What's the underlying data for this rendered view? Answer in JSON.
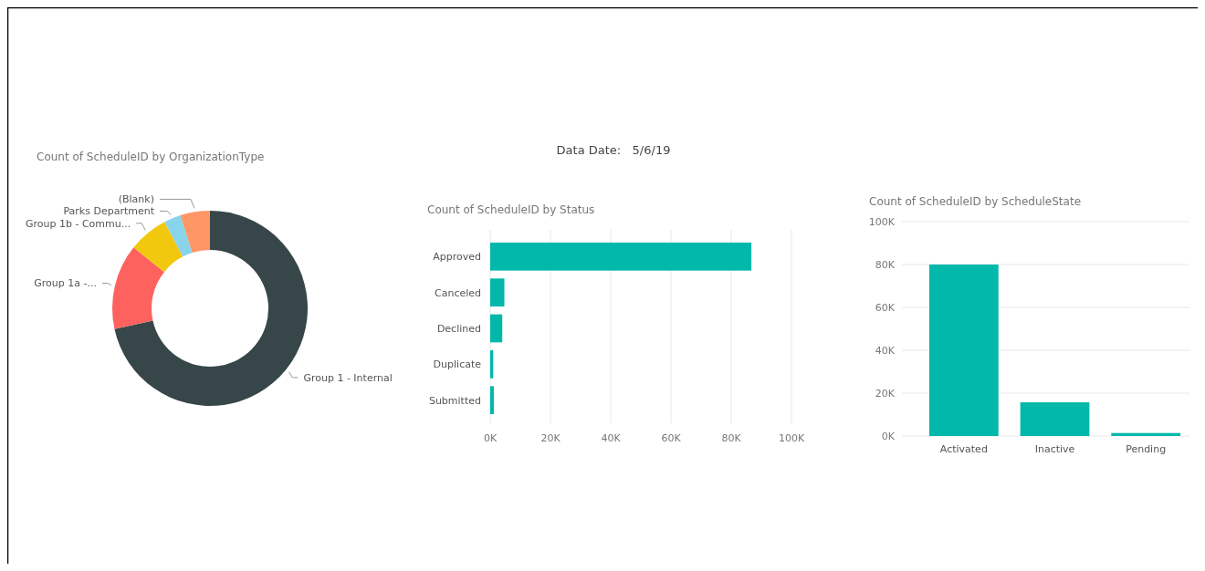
{
  "chart_data": [
    {
      "type": "donut",
      "title": "Count of ScheduleID by OrganizationType",
      "categories": [
        "Group 1 - Internal",
        "Group 1a -...",
        "Group 1b - Commu...",
        "Parks Department",
        "(Blank)"
      ],
      "values": [
        71.6,
        14.1,
        6.6,
        2.8,
        4.9
      ],
      "colors": [
        "#374649",
        "#fd625e",
        "#f2c80f",
        "#8ad4eb",
        "#fe9666"
      ]
    },
    {
      "type": "other",
      "annotations": [
        "Data Date:   5/6/19"
      ]
    },
    {
      "type": "bar",
      "orientation": "horizontal",
      "title": "Count of ScheduleID by Status",
      "categories": [
        "Approved",
        "Canceled",
        "Declined",
        "Duplicate",
        "Submitted"
      ],
      "values": [
        86700,
        4700,
        4000,
        1000,
        1200
      ],
      "color": "#01b8aa",
      "xlim": [
        0,
        100000
      ],
      "xticks": [
        {
          "value": 0,
          "label": "0K"
        },
        {
          "value": 20000,
          "label": "20K"
        },
        {
          "value": 40000,
          "label": "40K"
        },
        {
          "value": 60000,
          "label": "60K"
        },
        {
          "value": 80000,
          "label": "80K"
        },
        {
          "value": 100000,
          "label": "100K"
        }
      ],
      "grid": "x"
    },
    {
      "type": "bar",
      "title": "Count of ScheduleID by ScheduleState",
      "categories": [
        "Activated",
        "Inactive",
        "Pending"
      ],
      "values": [
        80000,
        15700,
        1400
      ],
      "color": "#01b8aa",
      "ylim": [
        0,
        100000
      ],
      "yticks": [
        {
          "value": 0,
          "label": "0K"
        },
        {
          "value": 20000,
          "label": "20K"
        },
        {
          "value": 40000,
          "label": "40K"
        },
        {
          "value": 60000,
          "label": "60K"
        },
        {
          "value": 80000,
          "label": "80K"
        },
        {
          "value": 100000,
          "label": "100K"
        }
      ],
      "grid": "y"
    }
  ]
}
